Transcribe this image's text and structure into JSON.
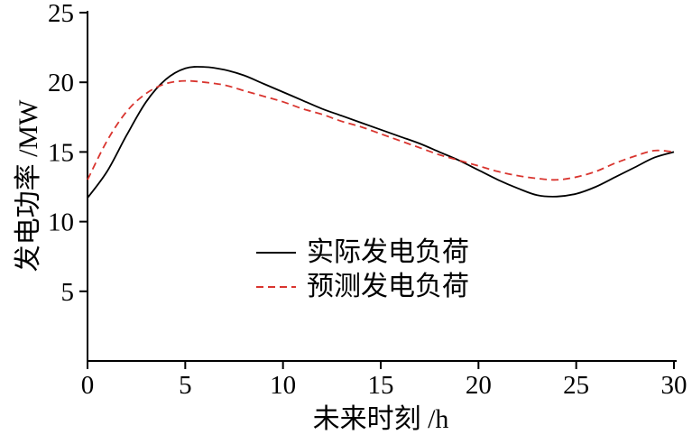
{
  "chart_data": {
    "type": "line",
    "title": "",
    "xlabel": "未来时刻 /h",
    "ylabel": "发电功率 /MW",
    "xlim": [
      0,
      30
    ],
    "ylim": [
      0,
      25
    ],
    "xticks": [
      0,
      5,
      10,
      15,
      20,
      25,
      30
    ],
    "yticks": [
      5,
      10,
      15,
      20,
      25
    ],
    "grid": false,
    "legend_position": "inside-center-bottom",
    "x": [
      0,
      1,
      2,
      3,
      4,
      5,
      6,
      7,
      8,
      9,
      10,
      11,
      12,
      13,
      14,
      15,
      16,
      17,
      18,
      19,
      20,
      21,
      22,
      23,
      24,
      25,
      26,
      27,
      28,
      29,
      30
    ],
    "series": [
      {
        "name": "实际发电负荷",
        "color": "#000000",
        "style": "solid",
        "values": [
          11.7,
          13.6,
          16.2,
          18.6,
          20.2,
          21.0,
          21.1,
          20.9,
          20.5,
          19.9,
          19.3,
          18.7,
          18.1,
          17.6,
          17.1,
          16.6,
          16.1,
          15.6,
          15.0,
          14.4,
          13.7,
          13.0,
          12.4,
          11.9,
          11.8,
          12.0,
          12.5,
          13.2,
          13.9,
          14.6,
          15.0
        ]
      },
      {
        "name": "预测发电负荷",
        "color": "#d9352f",
        "style": "dashed",
        "values": [
          13.0,
          15.8,
          17.9,
          19.2,
          19.9,
          20.1,
          20.0,
          19.8,
          19.4,
          19.0,
          18.6,
          18.1,
          17.7,
          17.2,
          16.8,
          16.3,
          15.8,
          15.3,
          14.8,
          14.4,
          14.0,
          13.6,
          13.3,
          13.1,
          13.0,
          13.2,
          13.6,
          14.2,
          14.7,
          15.1,
          15.0
        ]
      }
    ]
  }
}
